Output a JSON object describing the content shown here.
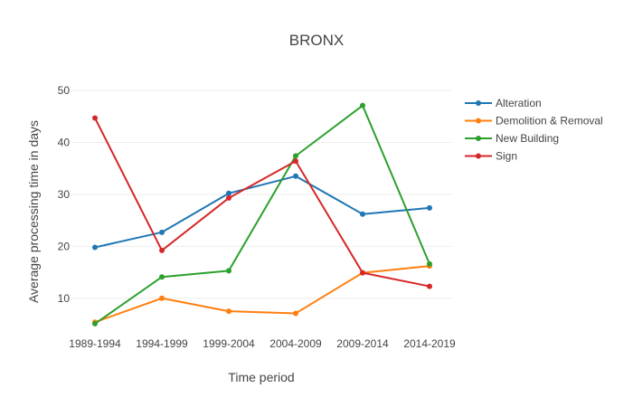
{
  "chart_data": {
    "type": "line",
    "title": "BRONX",
    "xlabel": "Time period",
    "ylabel": "Average processing time in days",
    "categories": [
      "1989-1994",
      "1994-1999",
      "1999-2004",
      "2004-2009",
      "2009-2014",
      "2014-2019"
    ],
    "yticks": [
      10,
      20,
      30,
      40,
      50
    ],
    "ylim": [
      3,
      50
    ],
    "grid": true,
    "legend_position": "top-right",
    "series": [
      {
        "name": "Alteration",
        "color": "#1f77b4",
        "values": [
          19.8,
          22.7,
          30.2,
          33.5,
          26.2,
          27.4
        ]
      },
      {
        "name": "Demolition & Removal",
        "color": "#ff7f0e",
        "values": [
          5.4,
          10.0,
          7.5,
          7.1,
          14.9,
          16.2
        ]
      },
      {
        "name": "New Building",
        "color": "#2ca02c",
        "values": [
          5.1,
          14.1,
          15.3,
          37.4,
          47.1,
          16.6
        ]
      },
      {
        "name": "Sign",
        "color": "#d62728",
        "values": [
          44.7,
          19.2,
          29.3,
          36.4,
          14.9,
          12.3
        ]
      }
    ]
  }
}
